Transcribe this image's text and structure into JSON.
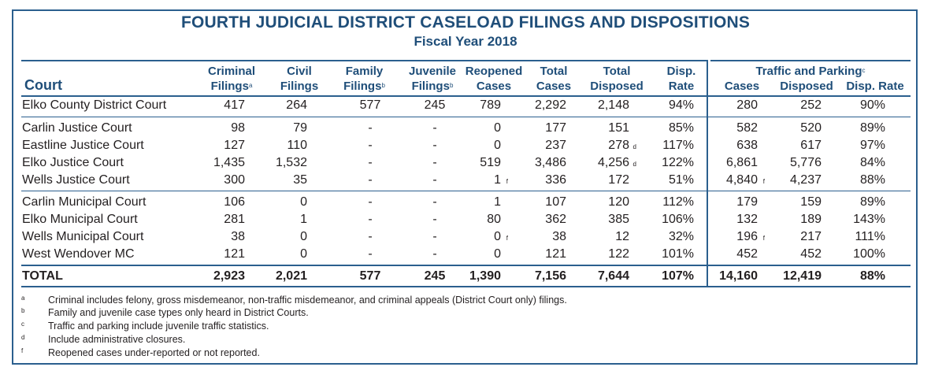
{
  "title": "FOURTH JUDICIAL DISTRICT CASELOAD FILINGS AND DISPOSITIONS",
  "subtitle": "Fiscal Year 2018",
  "headers": {
    "court": "Court",
    "criminal": [
      "Criminal",
      "Filings"
    ],
    "criminal_sup": "a",
    "civil": [
      "Civil",
      "Filings"
    ],
    "family": [
      "Family",
      "Filings"
    ],
    "family_sup": "b",
    "juvenile": [
      "Juvenile",
      "Filings"
    ],
    "juvenile_sup": "b",
    "reopened": [
      "Reopened",
      "Cases"
    ],
    "total_cases": [
      "Total",
      "Cases"
    ],
    "total_disposed": [
      "Total",
      "Disposed"
    ],
    "disp_rate": [
      "Disp.",
      "Rate"
    ],
    "traffic_group": "Traffic and Parking",
    "traffic_sup": "c",
    "traffic_cases": "Cases",
    "traffic_disposed": "Disposed",
    "traffic_rate": "Disp. Rate"
  },
  "rows": [
    {
      "court": "Elko County District Court",
      "criminal": "417",
      "civil": "264",
      "family": "577",
      "juvenile": "245",
      "reopened": "789",
      "reopened_note": "",
      "total": "2,292",
      "disposed": "2,148",
      "disposed_note": "",
      "rate": "94%",
      "t_cases": "280",
      "t_cases_note": "",
      "t_disposed": "252",
      "t_rate": "90%"
    },
    {
      "court": "Carlin Justice Court",
      "criminal": "98",
      "civil": "79",
      "family": "-",
      "juvenile": "-",
      "reopened": "0",
      "reopened_note": "",
      "total": "177",
      "disposed": "151",
      "disposed_note": "",
      "rate": "85%",
      "t_cases": "582",
      "t_cases_note": "",
      "t_disposed": "520",
      "t_rate": "89%"
    },
    {
      "court": "Eastline Justice Court",
      "criminal": "127",
      "civil": "110",
      "family": "-",
      "juvenile": "-",
      "reopened": "0",
      "reopened_note": "",
      "total": "237",
      "disposed": "278",
      "disposed_note": "d",
      "rate": "117%",
      "t_cases": "638",
      "t_cases_note": "",
      "t_disposed": "617",
      "t_rate": "97%"
    },
    {
      "court": "Elko Justice Court",
      "criminal": "1,435",
      "civil": "1,532",
      "family": "-",
      "juvenile": "-",
      "reopened": "519",
      "reopened_note": "",
      "total": "3,486",
      "disposed": "4,256",
      "disposed_note": "d",
      "rate": "122%",
      "t_cases": "6,861",
      "t_cases_note": "",
      "t_disposed": "5,776",
      "t_rate": "84%"
    },
    {
      "court": "Wells Justice Court",
      "criminal": "300",
      "civil": "35",
      "family": "-",
      "juvenile": "-",
      "reopened": "1",
      "reopened_note": "f",
      "total": "336",
      "disposed": "172",
      "disposed_note": "",
      "rate": "51%",
      "t_cases": "4,840",
      "t_cases_note": "f",
      "t_disposed": "4,237",
      "t_rate": "88%"
    },
    {
      "court": "Carlin Municipal Court",
      "criminal": "106",
      "civil": "0",
      "family": "-",
      "juvenile": "-",
      "reopened": "1",
      "reopened_note": "",
      "total": "107",
      "disposed": "120",
      "disposed_note": "",
      "rate": "112%",
      "t_cases": "179",
      "t_cases_note": "",
      "t_disposed": "159",
      "t_rate": "89%"
    },
    {
      "court": "Elko Municipal Court",
      "criminal": "281",
      "civil": "1",
      "family": "-",
      "juvenile": "-",
      "reopened": "80",
      "reopened_note": "",
      "total": "362",
      "disposed": "385",
      "disposed_note": "",
      "rate": "106%",
      "t_cases": "132",
      "t_cases_note": "",
      "t_disposed": "189",
      "t_rate": "143%"
    },
    {
      "court": "Wells Municipal Court",
      "criminal": "38",
      "civil": "0",
      "family": "-",
      "juvenile": "-",
      "reopened": "0",
      "reopened_note": "f",
      "total": "38",
      "disposed": "12",
      "disposed_note": "",
      "rate": "32%",
      "t_cases": "196",
      "t_cases_note": "f",
      "t_disposed": "217",
      "t_rate": "111%"
    },
    {
      "court": "West Wendover MC",
      "criminal": "121",
      "civil": "0",
      "family": "-",
      "juvenile": "-",
      "reopened": "0",
      "reopened_note": "",
      "total": "121",
      "disposed": "122",
      "disposed_note": "",
      "rate": "101%",
      "t_cases": "452",
      "t_cases_note": "",
      "t_disposed": "452",
      "t_rate": "100%"
    }
  ],
  "total": {
    "court": "TOTAL",
    "criminal": "2,923",
    "civil": "2,021",
    "family": "577",
    "juvenile": "245",
    "reopened": "1,390",
    "reopened_note": "",
    "total": "7,156",
    "disposed": "7,644",
    "disposed_note": "",
    "rate": "107%",
    "t_cases": "14,160",
    "t_cases_note": "",
    "t_disposed": "12,419",
    "t_rate": "88%"
  },
  "footnotes": [
    {
      "key": "a",
      "text": "Criminal includes felony, gross misdemeanor, non-traffic misdemeanor, and criminal appeals (District Court only) filings."
    },
    {
      "key": "b",
      "text": "Family and juvenile case types only heard in District Courts."
    },
    {
      "key": "c",
      "text": "Traffic and parking include juvenile traffic statistics."
    },
    {
      "key": "d",
      "text": "Include administrative closures."
    },
    {
      "key": "f",
      "text": "Reopened cases under-reported or not reported."
    }
  ]
}
